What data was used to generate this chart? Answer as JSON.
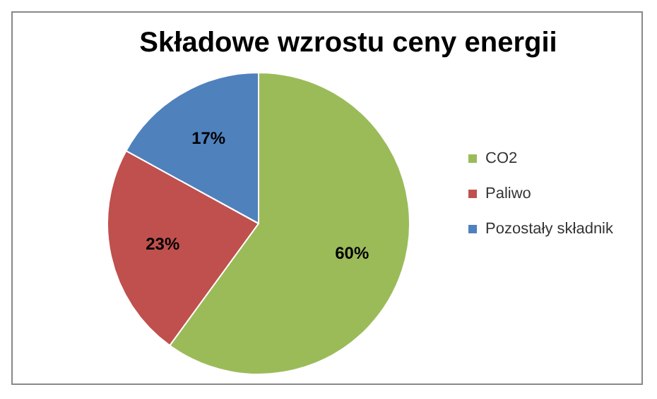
{
  "chart_data": {
    "type": "pie",
    "title": "Składowe wzrostu ceny energii",
    "categories": [
      "CO2",
      "Paliwo",
      "Pozostały składnik"
    ],
    "values": [
      60,
      23,
      17
    ],
    "colors": [
      "#9bbb59",
      "#c0504d",
      "#4f81bd"
    ],
    "value_labels": [
      "60%",
      "23%",
      "17%"
    ],
    "legend": "right"
  }
}
